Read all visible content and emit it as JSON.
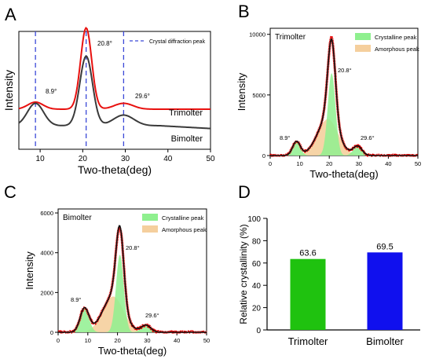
{
  "chart_data": [
    {
      "panel_label": "A",
      "type": "line",
      "xlabel": "Two-theta(deg)",
      "ylabel": "Intensity",
      "xlim": [
        5,
        50
      ],
      "xticks": [
        "10",
        "20",
        "30",
        "40",
        "50"
      ],
      "legend": {
        "label": "Crystal  diffraction peak",
        "placement": "top-right"
      },
      "reference_lines": [
        8.9,
        20.8,
        29.6
      ],
      "annotations": [
        "8.9°",
        "20.8°",
        "29.6°"
      ],
      "series": [
        {
          "name": "Trimolter",
          "color": "#e8110f",
          "baseline": 0.66,
          "peaks": [
            [
              8.9,
              0.06,
              1.8
            ],
            [
              20.8,
              0.69,
              1.3
            ],
            [
              29.6,
              0.05,
              2.2
            ]
          ]
        },
        {
          "name": "Bimolter",
          "color": "#3a3a3a",
          "baseline": 0.8,
          "peaks": [
            [
              8.9,
              0.19,
              1.9
            ],
            [
              20.8,
              0.59,
              1.5
            ],
            [
              29.6,
              0.09,
              2.4
            ]
          ]
        }
      ]
    },
    {
      "panel_label": "B",
      "type": "area",
      "title": "Trimolter",
      "xlabel": "Two-theta(deg)",
      "ylabel": "Intensity",
      "xlim": [
        0,
        50
      ],
      "ylim": [
        0,
        10500
      ],
      "xticks": [
        0,
        10,
        20,
        30,
        40,
        50
      ],
      "yticks": [
        0,
        5000,
        10000
      ],
      "legend": {
        "placement": "top-right",
        "entries": [
          "Crystalline peak",
          "Amorphous peak"
        ]
      },
      "annotations": [
        "8.9°",
        "20.8°",
        "29.6°"
      ],
      "crystalline_peaks": [
        [
          8.9,
          1150,
          1.3
        ],
        [
          20.8,
          6800,
          1.3
        ],
        [
          29.6,
          750,
          1.5
        ]
      ],
      "amorphous_peak": [
        19.5,
        3000,
        3.5
      ],
      "observed_peak_intensity": 9800,
      "noise_level": 120
    },
    {
      "panel_label": "C",
      "type": "area",
      "title": "Bimolter",
      "xlabel": "Two-theta(deg)",
      "ylabel": "Intensity",
      "xlim": [
        0,
        50
      ],
      "ylim": [
        0,
        6200
      ],
      "xticks": [
        0,
        10,
        20,
        30,
        40,
        50
      ],
      "yticks": [
        0,
        2000,
        4000,
        6000
      ],
      "legend": {
        "placement": "top-right",
        "entries": [
          "Crystalline peak",
          "Amorphous peak"
        ]
      },
      "annotations": [
        "8.9°",
        "20.8°",
        "29.6°"
      ],
      "crystalline_peaks": [
        [
          8.9,
          1200,
          1.5
        ],
        [
          20.8,
          3900,
          1.3
        ],
        [
          29.6,
          350,
          1.6
        ]
      ],
      "amorphous_peak": [
        18.5,
        1800,
        3.5
      ],
      "observed_peak_intensity": 5200,
      "noise_level": 90
    },
    {
      "panel_label": "D",
      "type": "bar",
      "ylabel": "Relative crystallinity (%)",
      "ylim": [
        0,
        100
      ],
      "yticks": [
        0,
        20,
        40,
        60,
        80,
        100
      ],
      "categories": [
        "Trimolter",
        "Bimolter"
      ],
      "values": [
        63.6,
        69.5
      ],
      "value_labels": [
        "63.6",
        "69.5"
      ],
      "colors": [
        "#1fc20f",
        "#1010ee"
      ]
    }
  ],
  "colors": {
    "crystalline_fill": "#8ff08f",
    "amorphous_fill": "#f5cf9d",
    "observed_points": "#e50000",
    "fit_line": "#111111",
    "reference_line": "#3b49d8"
  }
}
